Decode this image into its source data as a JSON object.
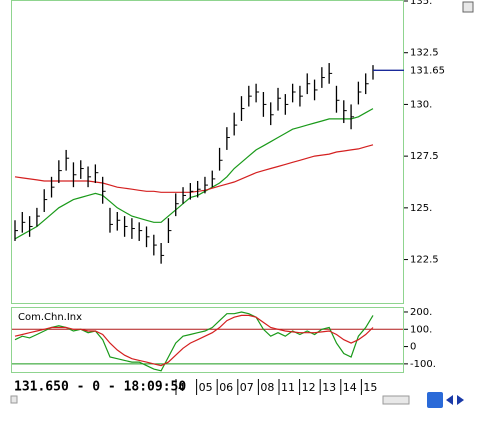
{
  "chart_data": [
    {
      "type": "ohlc",
      "ylim": [
        120.4,
        135
      ],
      "yticks": [
        {
          "value": 135,
          "label": "135."
        },
        {
          "value": 132.5,
          "label": "132.5"
        },
        {
          "value": 130,
          "label": "130."
        },
        {
          "value": 127.5,
          "label": "127.5"
        },
        {
          "value": 125,
          "label": "125."
        },
        {
          "value": 122.5,
          "label": "122.5"
        }
      ],
      "color": "#000000",
      "high": [
        124.4,
        124.8,
        124.6,
        125.0,
        125.9,
        126.5,
        127.3,
        127.8,
        127.2,
        127.3,
        127.0,
        127.1,
        126.5,
        125.0,
        124.8,
        124.6,
        124.5,
        124.3,
        124.1,
        123.7,
        123.3,
        124.5,
        125.7,
        126.0,
        126.2,
        126.3,
        126.5,
        126.8,
        127.9,
        128.9,
        129.6,
        130.4,
        130.9,
        131.0,
        130.6,
        130.1,
        130.8,
        130.5,
        131.0,
        130.9,
        131.5,
        131.2,
        131.8,
        132.0,
        130.9,
        130.2,
        130.0,
        131.1,
        131.5,
        131.9
      ],
      "low": [
        123.4,
        123.8,
        123.6,
        124.1,
        124.8,
        125.5,
        126.2,
        126.8,
        126.0,
        126.4,
        126.0,
        126.2,
        125.2,
        123.8,
        123.9,
        123.6,
        123.5,
        123.4,
        123.1,
        122.7,
        122.3,
        123.3,
        124.6,
        125.2,
        125.4,
        125.5,
        125.7,
        126.0,
        126.8,
        127.8,
        128.5,
        129.2,
        129.9,
        130.1,
        129.4,
        129.0,
        129.7,
        129.5,
        130.1,
        129.9,
        130.5,
        130.2,
        130.8,
        131.0,
        129.6,
        129.1,
        128.8,
        130.0,
        130.5,
        131.2
      ],
      "close": [
        123.9,
        124.3,
        124.1,
        124.6,
        125.4,
        126.0,
        126.8,
        127.4,
        126.6,
        126.9,
        126.5,
        126.7,
        125.8,
        124.2,
        124.4,
        124.1,
        124.0,
        123.9,
        123.6,
        123.2,
        122.7,
        123.9,
        125.2,
        125.6,
        125.8,
        125.9,
        126.1,
        126.4,
        127.3,
        128.4,
        129.0,
        129.8,
        130.4,
        130.6,
        130.0,
        129.5,
        130.3,
        130.0,
        130.6,
        130.4,
        131.0,
        130.7,
        131.3,
        131.5,
        130.2,
        129.7,
        129.4,
        130.6,
        131.0,
        131.65
      ],
      "series": [
        {
          "color": "#1a9a1a",
          "values": [
            123.5,
            123.7,
            123.9,
            124.1,
            124.4,
            124.7,
            125.0,
            125.2,
            125.4,
            125.5,
            125.6,
            125.7,
            125.6,
            125.3,
            125.0,
            124.8,
            124.6,
            124.5,
            124.4,
            124.3,
            124.3,
            124.6,
            124.9,
            125.2,
            125.5,
            125.6,
            125.8,
            126.0,
            126.2,
            126.5,
            126.9,
            127.2,
            127.5,
            127.8,
            128.0,
            128.2,
            128.4,
            128.6,
            128.8,
            128.9,
            129.0,
            129.1,
            129.2,
            129.3,
            129.3,
            129.3,
            129.3,
            129.4,
            129.6,
            129.8
          ]
        },
        {
          "color": "#d42020",
          "values": [
            126.5,
            126.45,
            126.4,
            126.35,
            126.3,
            126.3,
            126.3,
            126.3,
            126.3,
            126.3,
            126.3,
            126.25,
            126.2,
            126.1,
            126.0,
            125.95,
            125.9,
            125.85,
            125.8,
            125.8,
            125.75,
            125.75,
            125.75,
            125.75,
            125.75,
            125.8,
            125.85,
            125.95,
            126.05,
            126.15,
            126.25,
            126.4,
            126.55,
            126.7,
            126.8,
            126.9,
            127.0,
            127.1,
            127.2,
            127.3,
            127.4,
            127.5,
            127.55,
            127.6,
            127.7,
            127.75,
            127.8,
            127.85,
            127.95,
            128.05
          ]
        }
      ],
      "last_value": 131.65,
      "last_color": "#1a2a9a"
    },
    {
      "type": "line",
      "title": "Com.Chn.Inx",
      "ylim": [
        -147,
        223
      ],
      "yticks": [
        {
          "value": 200,
          "label": "200."
        },
        {
          "value": 100,
          "label": "100."
        },
        0,
        {
          "value": -100,
          "label": "-100."
        }
      ],
      "levels": [
        {
          "value": 100,
          "color": "#b01818"
        },
        {
          "value": -100,
          "color": "#1a9a1a"
        }
      ],
      "series": [
        {
          "color": "#1a9a1a",
          "values": [
            40,
            60,
            50,
            70,
            90,
            110,
            120,
            110,
            90,
            100,
            80,
            90,
            40,
            -60,
            -70,
            -80,
            -90,
            -90,
            -110,
            -130,
            -140,
            -60,
            20,
            60,
            70,
            80,
            90,
            110,
            150,
            190,
            190,
            200,
            190,
            170,
            100,
            60,
            80,
            60,
            90,
            70,
            90,
            70,
            100,
            110,
            20,
            -40,
            -60,
            60,
            110,
            180
          ]
        },
        {
          "color": "#d42020",
          "values": [
            60,
            70,
            80,
            90,
            100,
            110,
            110,
            110,
            100,
            100,
            90,
            90,
            70,
            20,
            -20,
            -50,
            -70,
            -80,
            -90,
            -100,
            -110,
            -90,
            -50,
            -10,
            20,
            40,
            60,
            80,
            110,
            150,
            170,
            180,
            180,
            170,
            140,
            110,
            100,
            90,
            85,
            80,
            80,
            80,
            85,
            90,
            70,
            40,
            20,
            40,
            70,
            110
          ]
        }
      ]
    }
  ],
  "status": "131.650 - 0 - 18:09:50",
  "dates": [
    "4",
    "05",
    "06",
    "07",
    "08",
    "11",
    "12",
    "13",
    "14",
    "15"
  ]
}
